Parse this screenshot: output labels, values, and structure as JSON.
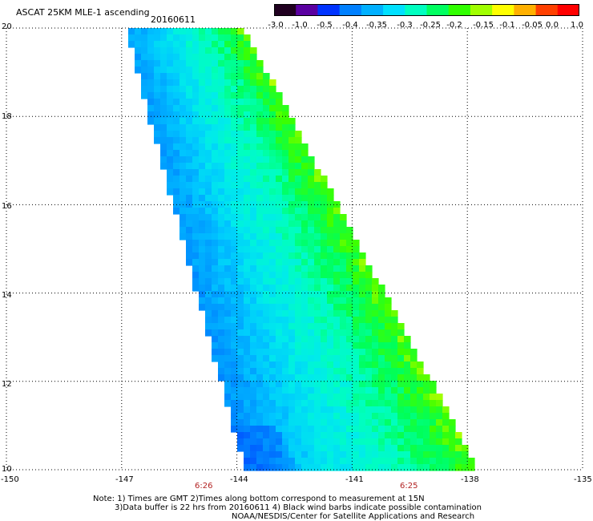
{
  "header": {
    "title": "ASCAT 25KM MLE-1 ascending",
    "date": "20160611"
  },
  "colorbar": {
    "labels": [
      "-3.0",
      "-1.0",
      "-0.5",
      "-0.4",
      "-0.35",
      "-0.3",
      "-0.25",
      "-0.2",
      "-0.15",
      "-0.1",
      "-0.05",
      "0.0",
      "1.0"
    ],
    "colors": [
      "#200020",
      "#5a00a0",
      "#0033ff",
      "#0080ff",
      "#00b0ff",
      "#00e0ff",
      "#00ffc0",
      "#00ff60",
      "#30ff00",
      "#a0ff00",
      "#ffff00",
      "#ffb000",
      "#ff4000",
      "#ff0000"
    ]
  },
  "axes": {
    "lat_labels": [
      "20",
      "18",
      "16",
      "14",
      "12",
      "10"
    ],
    "lon_labels": [
      "-150",
      "-147",
      "-144",
      "-141",
      "-138",
      "-135"
    ],
    "time_labels": [
      "6:26",
      "6:25"
    ],
    "grid": "dotted"
  },
  "notes": {
    "line1": "Note: 1) Times are GMT 2)Times along bottom correspond to measurement at 15N",
    "line2": "3)Data buffer is 22 hrs from 20160611 4) Black wind barbs indicate possible contamination",
    "line3": "NOAA/NESDIS/Center for Satellite Applications and Research"
  },
  "map_data": {
    "lat_range": [
      10,
      20
    ],
    "lon_range": [
      -150,
      -135
    ],
    "swath": {
      "north_edge_lon": [
        -146.9,
        -143.9
      ],
      "south_edge_lon": [
        -143.8,
        -137.8
      ]
    }
  }
}
